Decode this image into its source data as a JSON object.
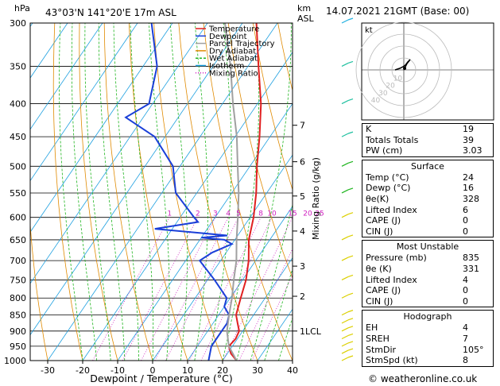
{
  "header": {
    "location": "43°03'N 141°20'E 17m ASL",
    "date": "14.07.2021 21GMT (Base: 00)",
    "hpa_unit": "hPa",
    "km_unit": "km",
    "asl_unit": "ASL"
  },
  "footer": "© weatheronline.co.uk",
  "chart_data": {
    "type": "line",
    "title": "",
    "xlabel": "Dewpoint / Temperature (°C)",
    "ylabel": "hPa",
    "right_ylabel": "Mixing Ratio (g/kg)",
    "xlim": [
      -35,
      40
    ],
    "ylim": [
      1000,
      300
    ],
    "x_ticks": [
      -30,
      -20,
      -10,
      0,
      10,
      20,
      30,
      40
    ],
    "pressure_ticks": [
      300,
      350,
      400,
      450,
      500,
      550,
      600,
      650,
      700,
      750,
      800,
      850,
      900,
      950,
      1000
    ],
    "km_ticks": [
      {
        "p": 432,
        "label": "7"
      },
      {
        "p": 492,
        "label": "6"
      },
      {
        "p": 556,
        "label": "5"
      },
      {
        "p": 630,
        "label": "4"
      },
      {
        "p": 714,
        "label": "3"
      },
      {
        "p": 795,
        "label": "2"
      },
      {
        "p": 900,
        "label": "1LCL"
      }
    ],
    "mixing_ratio_labels": [
      "1",
      "2",
      "3",
      "4",
      "5",
      "8",
      "10",
      "15",
      "20",
      "25"
    ],
    "mixing_ratio_values": [
      1,
      2,
      3,
      4,
      5,
      8,
      10,
      15,
      20,
      25
    ],
    "legend": {
      "placement": "top-left",
      "entries": [
        {
          "name": "Temperature",
          "color": "#e02020"
        },
        {
          "name": "Dewpoint",
          "color": "#1a3fd8"
        },
        {
          "name": "Parcel Trajectory",
          "color": "#a0a0a0"
        },
        {
          "name": "Dry Adiabat",
          "color": "#e08a00"
        },
        {
          "name": "Wet Adiabat",
          "color": "#1fb51f"
        },
        {
          "name": "Isotherm",
          "color": "#1ea0e0"
        },
        {
          "name": "Mixing Ratio",
          "color": "#d020c0"
        }
      ]
    },
    "series": [
      {
        "name": "Temperature",
        "color": "#e02020",
        "points": [
          [
            1000,
            24
          ],
          [
            975,
            21
          ],
          [
            950,
            19
          ],
          [
            925,
            19.5
          ],
          [
            900,
            19
          ],
          [
            875,
            17
          ],
          [
            850,
            15
          ],
          [
            800,
            13
          ],
          [
            750,
            11
          ],
          [
            700,
            8
          ],
          [
            650,
            4
          ],
          [
            600,
            1
          ],
          [
            550,
            -3
          ],
          [
            500,
            -8
          ],
          [
            450,
            -13
          ],
          [
            400,
            -19
          ],
          [
            350,
            -27
          ],
          [
            300,
            -36
          ]
        ]
      },
      {
        "name": "Dewpoint",
        "color": "#1a3fd8",
        "points": [
          [
            1000,
            16
          ],
          [
            975,
            15
          ],
          [
            950,
            14
          ],
          [
            925,
            14
          ],
          [
            900,
            14
          ],
          [
            875,
            14
          ],
          [
            850,
            13
          ],
          [
            825,
            10
          ],
          [
            800,
            9
          ],
          [
            750,
            2
          ],
          [
            700,
            -6
          ],
          [
            680,
            -4
          ],
          [
            660,
            0
          ],
          [
            650,
            -3
          ],
          [
            645,
            -10
          ],
          [
            640,
            -3
          ],
          [
            625,
            -25
          ],
          [
            610,
            -14
          ],
          [
            600,
            -16
          ],
          [
            550,
            -26
          ],
          [
            500,
            -32
          ],
          [
            450,
            -43
          ],
          [
            420,
            -55
          ],
          [
            400,
            -51
          ],
          [
            350,
            -56
          ],
          [
            300,
            -66
          ]
        ]
      },
      {
        "name": "Parcel Trajectory",
        "color": "#a0a0a0",
        "points": [
          [
            1000,
            24
          ],
          [
            950,
            19
          ],
          [
            900,
            15.5
          ],
          [
            850,
            13
          ],
          [
            800,
            10.5
          ],
          [
            750,
            7.5
          ],
          [
            700,
            4.5
          ],
          [
            650,
            0.5
          ],
          [
            600,
            -3.5
          ],
          [
            550,
            -8
          ],
          [
            500,
            -13.5
          ],
          [
            450,
            -19.5
          ],
          [
            400,
            -27
          ],
          [
            350,
            -35
          ],
          [
            300,
            -45
          ]
        ]
      }
    ],
    "hodograph": {
      "label": "kt",
      "ring_labels": [
        "10",
        "20",
        "30",
        "40"
      ]
    },
    "wind_barbs_hpa": [
      1000,
      975,
      950,
      925,
      900,
      875,
      850,
      800,
      750,
      700,
      650,
      600,
      550,
      500,
      450,
      400,
      350,
      300
    ]
  },
  "indices": [
    {
      "label": "K",
      "value": "19"
    },
    {
      "label": "Totals Totals",
      "value": "39"
    },
    {
      "label": "PW (cm)",
      "value": "3.03"
    }
  ],
  "surface": {
    "title": "Surface",
    "rows": [
      {
        "label": "Temp (°C)",
        "value": "24"
      },
      {
        "label": "Dewp (°C)",
        "value": "16"
      },
      {
        "label": "θe(K)",
        "value": "328"
      },
      {
        "label": "Lifted Index",
        "value": "6"
      },
      {
        "label": "CAPE (J)",
        "value": "0"
      },
      {
        "label": "CIN (J)",
        "value": "0"
      }
    ]
  },
  "most_unstable": {
    "title": "Most Unstable",
    "rows": [
      {
        "label": "Pressure (mb)",
        "value": "835"
      },
      {
        "label": "θe (K)",
        "value": "331"
      },
      {
        "label": "Lifted Index",
        "value": "4"
      },
      {
        "label": "CAPE (J)",
        "value": "0"
      },
      {
        "label": "CIN (J)",
        "value": "0"
      }
    ]
  },
  "hodograph_table": {
    "title": "Hodograph",
    "rows": [
      {
        "label": "EH",
        "value": "4"
      },
      {
        "label": "SREH",
        "value": "7"
      },
      {
        "label": "StmDir",
        "value": "105°"
      },
      {
        "label": "StmSpd (kt)",
        "value": "8"
      }
    ]
  }
}
